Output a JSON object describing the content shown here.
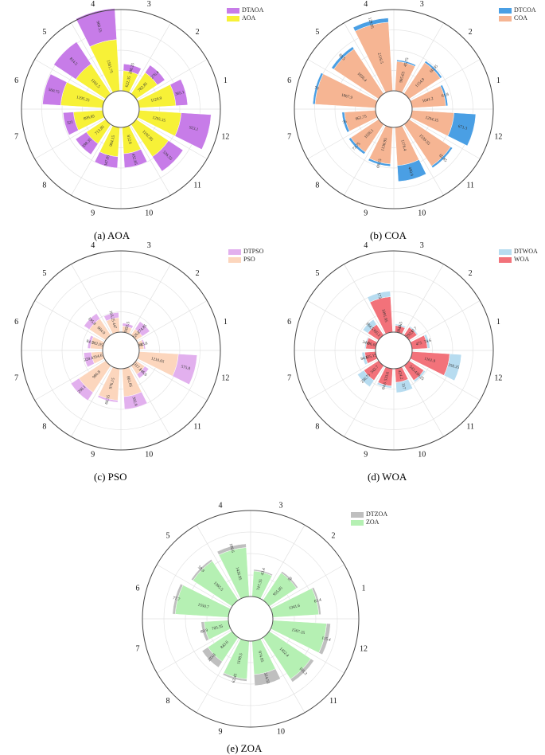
{
  "chart_data": [
    {
      "type": "bar",
      "subtype": "polar-stacked",
      "caption": "(a) AOA",
      "categories": [
        "1",
        "2",
        "3",
        "4",
        "5",
        "6",
        "7",
        "8",
        "9",
        "10",
        "11",
        "12"
      ],
      "series": [
        {
          "name": "AOA",
          "color": "#f7f137",
          "values": [
            1129.9,
            782.85,
            622.35,
            1581.75,
            1101.5,
            1295.25,
            899.85,
            713.85,
            904.15,
            812.6,
            1192.85,
            1295.35
          ]
        },
        {
          "name": "DTAOA",
          "color": "#c77ce8",
          "values": [
            365.1,
            276.4,
            208.25,
            960.55,
            814.5,
            560.75,
            321,
            398.35,
            347.85,
            432.85,
            536.55,
            923.1
          ]
        }
      ],
      "outer_value": 2500
    },
    {
      "type": "bar",
      "subtype": "polar-stacked",
      "caption": "(b) COA",
      "categories": [
        "1",
        "2",
        "3",
        "4",
        "5",
        "6",
        "7",
        "8",
        "9",
        "10",
        "11",
        "12"
      ],
      "series": [
        {
          "name": "COA",
          "color": "#f6b593",
          "values": [
            1041.2,
            1154.9,
            905.65,
            2116.5,
            1656.4,
            1867.9,
            961.75,
            1026.1,
            1130.95,
            1176.4,
            1539.55,
            1294.35
          ]
        },
        {
          "name": "DTCOA",
          "color": "#4a9fe4",
          "values": [
            61.8,
            60.35,
            45.75,
            129.95,
            83.5,
            70,
            76,
            73.75,
            69.15,
            490.9,
            65.85,
            671.3
          ]
        }
      ],
      "outer_value": 2500
    },
    {
      "type": "bar",
      "subtype": "polar-stacked",
      "caption": "(c) PSO",
      "categories": [
        "1",
        "2",
        "3",
        "4",
        "5",
        "6",
        "7",
        "8",
        "9",
        "10",
        "11",
        "12"
      ],
      "series": [
        {
          "name": "PSO",
          "color": "#fcd6bd",
          "values": [
            148.1,
            226.6,
            191.5,
            447,
            604.9,
            382.05,
            354.6,
            986.8,
            976.15,
            861.05,
            317.1,
            1210.65
          ]
        },
        {
          "name": "DTPSO",
          "color": "#e2b0ee",
          "values": [
            45.6,
            274.85,
            91.5,
            163.25,
            195.8,
            84.5,
            228.4,
            298.1,
            60.55,
            392.9,
            146.6,
            575.8
          ]
        }
      ],
      "outer_value": 2500
    },
    {
      "type": "bar",
      "subtype": "polar-stacked",
      "caption": "(d) WOA",
      "categories": [
        "1",
        "2",
        "3",
        "4",
        "5",
        "6",
        "7",
        "8",
        "9",
        "10",
        "11",
        "12"
      ],
      "series": [
        {
          "name": "WOA",
          "color": "#f2727a",
          "values": [
            475,
            292.1,
            208.05,
            1091.95,
            395.1,
            306.05,
            335.15,
            542.7,
            533.6,
            424.2,
            543.4,
            1161.9
          ]
        },
        {
          "name": "DTWOA",
          "color": "#b7dcf0",
          "values": [
            74.6,
            37.7,
            44.5,
            173,
            184.5,
            34.5,
            84.6,
            236.75,
            64.6,
            317,
            60.25,
            358.35
          ]
        }
      ],
      "outer_value": 2500
    },
    {
      "type": "bar",
      "subtype": "polar-stacked",
      "caption": "(e) ZOA",
      "categories": [
        "1",
        "2",
        "3",
        "4",
        "5",
        "6",
        "7",
        "8",
        "9",
        "10",
        "11",
        "12"
      ],
      "series": [
        {
          "name": "ZOA",
          "color": "#b5f0b3",
          "values": [
            1341.6,
            955.85,
            747.35,
            1426.95,
            1365.5,
            1550.7,
            705.35,
            843.6,
            1108.5,
            974.85,
            1452.4,
            1567.35
          ]
        },
        {
          "name": "DTZOA",
          "color": "#bfbfbf",
          "values": [
            61.4,
            50,
            43.4,
            108.6,
            59.9,
            77.7,
            89.9,
            203.8,
            62.45,
            324.55,
            105.3,
            115.4
          ]
        }
      ],
      "outer_value": 2500
    }
  ]
}
